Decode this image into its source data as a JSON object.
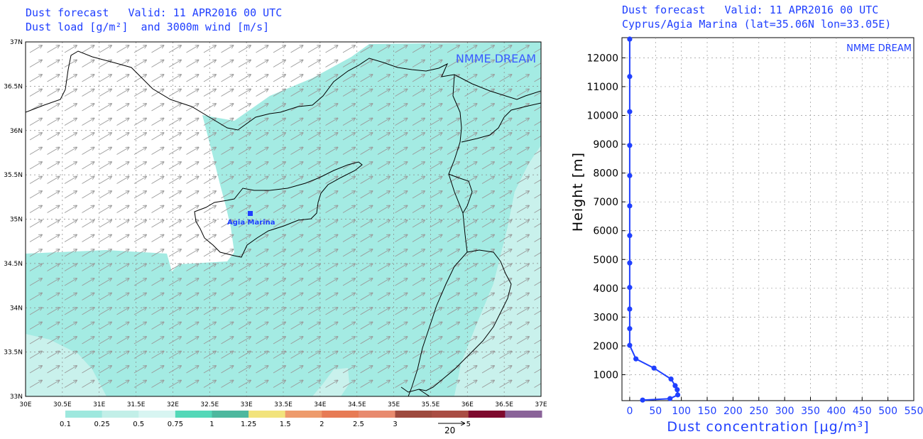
{
  "map_panel": {
    "title_line1": "Dust forecast   Valid: 11 APR2016 00 UTC",
    "title_line2": "Dust load [g/m²]  and 3000m wind [m/s]",
    "watermark": "NMME DREAM",
    "site_label": "Agia Marina",
    "wind_ref_label": "20",
    "lon_ticks": [
      "30E",
      "30.5E",
      "31E",
      "31.5E",
      "32E",
      "32.5E",
      "33E",
      "33.5E",
      "34E",
      "34.5E",
      "35E",
      "35.5E",
      "36E",
      "36.5E",
      "37E"
    ],
    "lat_ticks": [
      "33N",
      "33.5N",
      "34N",
      "34.5N",
      "35N",
      "35.5N",
      "36N",
      "36.5N",
      "37N"
    ],
    "colorbar": {
      "labels": [
        "0.1",
        "0.25",
        "0.5",
        "0.75",
        "1",
        "1.25",
        "1.5",
        "2",
        "2.5",
        "3",
        "",
        "5",
        ""
      ],
      "colors": [
        "#9ee8de",
        "#c2efe8",
        "#d8f5f2",
        "#53d8b8",
        "#4db89e",
        "#f2e37c",
        "#ee9b6c",
        "#e77b55",
        "#e88a6e",
        "#9e4a3e",
        "#a94d43",
        "#7e0a2e",
        "#8a6399"
      ]
    },
    "colors": {
      "dust_low": "#a4ebe3",
      "dust_lower": "#c9f1ec",
      "wind_vector": "#9a9a9a",
      "coast": "#000000"
    }
  },
  "profile_panel": {
    "title_line1": "Dust forecast   Valid: 11 APR2016 00 UTC",
    "title_line2": "Cyprus/Agia Marina (lat=35.06N lon=33.05E)",
    "watermark": "NMME DREAM",
    "xlabel": "Dust concentration [μg/m³]",
    "ylabel": "Height [m]"
  },
  "chart_data": [
    {
      "type": "line",
      "title": "Dust forecast   Valid: 11 APR2016 00 UTC",
      "subtitle": "Cyprus/Agia Marina (lat=35.06N lon=33.05E)",
      "xlabel": "Dust concentration [μg/m³]",
      "ylabel": "Height [m]",
      "xlim": [
        -15,
        550
      ],
      "ylim": [
        100,
        12700
      ],
      "xticks": [
        0,
        50,
        100,
        150,
        200,
        250,
        300,
        350,
        400,
        450,
        500,
        550
      ],
      "yticks": [
        1000,
        2000,
        3000,
        4000,
        5000,
        6000,
        7000,
        8000,
        9000,
        10000,
        11000,
        12000
      ],
      "grid": true,
      "series": [
        {
          "name": "",
          "color": "#2040ff",
          "points": [
            {
              "x": 25,
              "y": 120
            },
            {
              "x": 78,
              "y": 170
            },
            {
              "x": 93,
              "y": 300
            },
            {
              "x": 92,
              "y": 480
            },
            {
              "x": 88,
              "y": 620
            },
            {
              "x": 80,
              "y": 850
            },
            {
              "x": 47,
              "y": 1230
            },
            {
              "x": 12,
              "y": 1550
            },
            {
              "x": 0,
              "y": 2020
            },
            {
              "x": 0,
              "y": 2600
            },
            {
              "x": 0,
              "y": 3280
            },
            {
              "x": 0,
              "y": 4030
            },
            {
              "x": 0,
              "y": 4880
            },
            {
              "x": 0,
              "y": 5830
            },
            {
              "x": 0,
              "y": 6860
            },
            {
              "x": 0,
              "y": 7910
            },
            {
              "x": 0,
              "y": 8960
            },
            {
              "x": 0,
              "y": 10130
            },
            {
              "x": 0,
              "y": 11350
            },
            {
              "x": 0,
              "y": 12650
            }
          ]
        }
      ]
    }
  ]
}
